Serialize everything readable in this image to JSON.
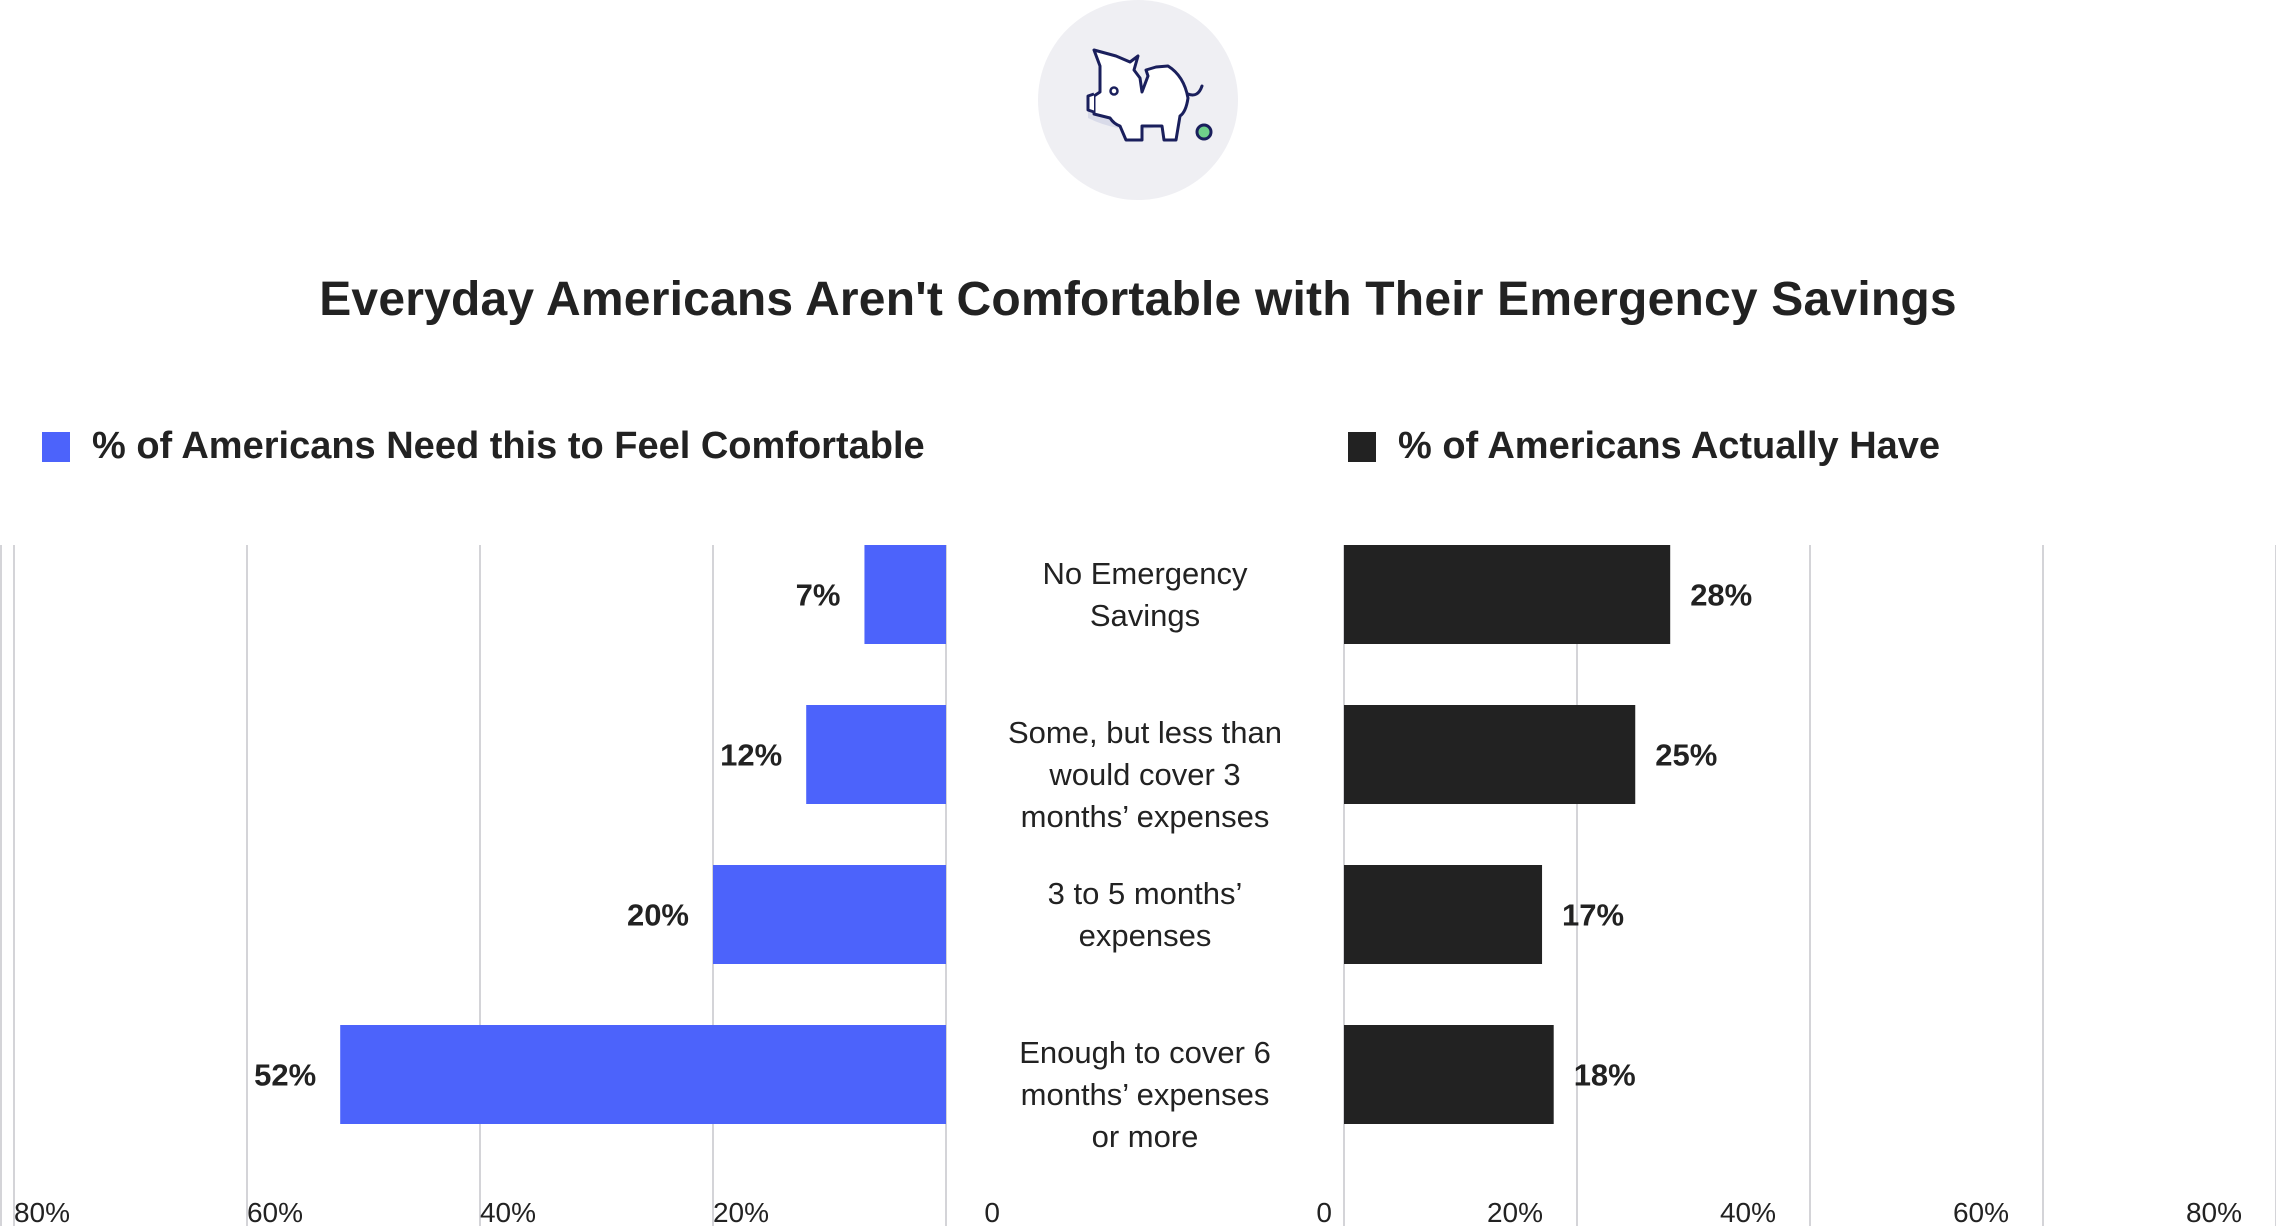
{
  "header": {
    "icon": "broken-piggy-bank-icon",
    "title": "Everyday Americans Aren't Comfortable with Their Emergency Savings"
  },
  "legend": {
    "left": {
      "label": "% of Americans Need this to Feel Comfortable",
      "color": "#4c63fb"
    },
    "right": {
      "label": "% of Americans Actually Have",
      "color": "#222222"
    }
  },
  "colors": {
    "grid": "#d4d4d8",
    "icon_bg": "#efeff3",
    "icon_stroke": "#1a1f5c",
    "icon_coin": "#6fcf8a"
  },
  "chart_data": {
    "type": "bar",
    "subtype": "diverging-horizontal-bar",
    "title": "Everyday Americans Aren't Comfortable with Their Emergency Savings",
    "categories": [
      "No Emergency\nSavings",
      "Some, but less than\nwould cover 3\nmonths’ expenses",
      "3 to 5 months’\nexpenses",
      "Enough to cover 6\nmonths’ expenses\nor more"
    ],
    "series": [
      {
        "name": "% of Americans Need this to Feel Comfortable",
        "side": "left",
        "color": "#4c63fb",
        "values": [
          7,
          12,
          20,
          52
        ],
        "labels": [
          "7%",
          "12%",
          "20%",
          "52%"
        ]
      },
      {
        "name": "% of Americans Actually Have",
        "side": "right",
        "color": "#222222",
        "values": [
          28,
          25,
          17,
          18
        ],
        "labels": [
          "28%",
          "25%",
          "17%",
          "18%"
        ]
      }
    ],
    "xlim": [
      0,
      80
    ],
    "left_ticks": [
      "80%",
      "60%",
      "40%",
      "20%",
      "0"
    ],
    "right_ticks": [
      "0",
      "20%",
      "40%",
      "60%",
      "80%"
    ],
    "tick_values": [
      0,
      20,
      40,
      60,
      80
    ],
    "grid": true,
    "legend_position": "top",
    "xlabel": "",
    "ylabel": ""
  }
}
